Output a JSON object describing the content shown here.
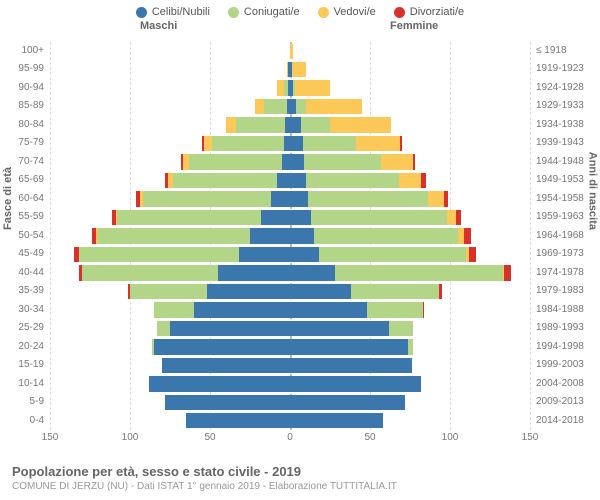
{
  "chart": {
    "type": "population-pyramid",
    "background_color": "#ffffff",
    "grid_color": "#dddddd",
    "center_line_color": "#bbbbbb",
    "text_color": "#666666",
    "label_fontsize": 10,
    "axis_title_fontsize": 11,
    "title": "Popolazione per età, sesso e stato civile - 2019",
    "subtitle": "COMUNE DI JERZU (NU) - Dati ISTAT 1° gennaio 2019 - Elaborazione TUTTITALIA.IT",
    "header_male": "Maschi",
    "header_female": "Femmine",
    "y_title_left": "Fasce di età",
    "y_title_right": "Anni di nascita",
    "xmax": 150,
    "xticks": [
      150,
      100,
      50,
      0,
      50,
      100,
      150
    ],
    "legend": [
      {
        "label": "Celibi/Nubili",
        "color": "#3b77ad"
      },
      {
        "label": "Coniugati/e",
        "color": "#b3d587"
      },
      {
        "label": "Vedovi/e",
        "color": "#fcc858"
      },
      {
        "label": "Divorziati/e",
        "color": "#d9302c"
      }
    ],
    "rows": [
      {
        "age": "100+",
        "birth": "≤ 1918",
        "m": {
          "s": 0,
          "m": 0,
          "w": 0,
          "d": 0
        },
        "f": {
          "s": 0,
          "m": 0,
          "w": 2,
          "d": 0
        }
      },
      {
        "age": "95-99",
        "birth": "1919-1923",
        "m": {
          "s": 1,
          "m": 0,
          "w": 1,
          "d": 0
        },
        "f": {
          "s": 1,
          "m": 0,
          "w": 9,
          "d": 0
        }
      },
      {
        "age": "90-94",
        "birth": "1924-1928",
        "m": {
          "s": 1,
          "m": 3,
          "w": 4,
          "d": 0
        },
        "f": {
          "s": 2,
          "m": 1,
          "w": 22,
          "d": 0
        }
      },
      {
        "age": "85-89",
        "birth": "1929-1933",
        "m": {
          "s": 2,
          "m": 14,
          "w": 6,
          "d": 0
        },
        "f": {
          "s": 4,
          "m": 6,
          "w": 35,
          "d": 0
        }
      },
      {
        "age": "80-84",
        "birth": "1934-1938",
        "m": {
          "s": 3,
          "m": 31,
          "w": 6,
          "d": 0
        },
        "f": {
          "s": 7,
          "m": 18,
          "w": 38,
          "d": 0
        }
      },
      {
        "age": "75-79",
        "birth": "1939-1943",
        "m": {
          "s": 4,
          "m": 45,
          "w": 5,
          "d": 1
        },
        "f": {
          "s": 8,
          "m": 33,
          "w": 28,
          "d": 1
        }
      },
      {
        "age": "70-74",
        "birth": "1944-1948",
        "m": {
          "s": 5,
          "m": 58,
          "w": 4,
          "d": 1
        },
        "f": {
          "s": 9,
          "m": 48,
          "w": 20,
          "d": 1
        }
      },
      {
        "age": "65-69",
        "birth": "1949-1953",
        "m": {
          "s": 8,
          "m": 65,
          "w": 3,
          "d": 2
        },
        "f": {
          "s": 10,
          "m": 58,
          "w": 14,
          "d": 3
        }
      },
      {
        "age": "60-64",
        "birth": "1954-1958",
        "m": {
          "s": 12,
          "m": 80,
          "w": 2,
          "d": 2
        },
        "f": {
          "s": 11,
          "m": 75,
          "w": 10,
          "d": 3
        }
      },
      {
        "age": "55-59",
        "birth": "1959-1963",
        "m": {
          "s": 18,
          "m": 90,
          "w": 1,
          "d": 2
        },
        "f": {
          "s": 13,
          "m": 85,
          "w": 6,
          "d": 3
        }
      },
      {
        "age": "50-54",
        "birth": "1964-1968",
        "m": {
          "s": 25,
          "m": 95,
          "w": 1,
          "d": 3
        },
        "f": {
          "s": 15,
          "m": 90,
          "w": 4,
          "d": 4
        }
      },
      {
        "age": "45-49",
        "birth": "1969-1973",
        "m": {
          "s": 32,
          "m": 100,
          "w": 0,
          "d": 3
        },
        "f": {
          "s": 18,
          "m": 92,
          "w": 2,
          "d": 4
        }
      },
      {
        "age": "40-44",
        "birth": "1974-1978",
        "m": {
          "s": 45,
          "m": 85,
          "w": 0,
          "d": 2
        },
        "f": {
          "s": 28,
          "m": 105,
          "w": 1,
          "d": 4
        }
      },
      {
        "age": "35-39",
        "birth": "1979-1983",
        "m": {
          "s": 52,
          "m": 48,
          "w": 0,
          "d": 1
        },
        "f": {
          "s": 38,
          "m": 55,
          "w": 0,
          "d": 2
        }
      },
      {
        "age": "30-34",
        "birth": "1984-1988",
        "m": {
          "s": 60,
          "m": 25,
          "w": 0,
          "d": 0
        },
        "f": {
          "s": 48,
          "m": 35,
          "w": 0,
          "d": 1
        }
      },
      {
        "age": "25-29",
        "birth": "1989-1993",
        "m": {
          "s": 75,
          "m": 8,
          "w": 0,
          "d": 0
        },
        "f": {
          "s": 62,
          "m": 15,
          "w": 0,
          "d": 0
        }
      },
      {
        "age": "20-24",
        "birth": "1994-1998",
        "m": {
          "s": 85,
          "m": 1,
          "w": 0,
          "d": 0
        },
        "f": {
          "s": 74,
          "m": 3,
          "w": 0,
          "d": 0
        }
      },
      {
        "age": "15-19",
        "birth": "1999-2003",
        "m": {
          "s": 80,
          "m": 0,
          "w": 0,
          "d": 0
        },
        "f": {
          "s": 76,
          "m": 0,
          "w": 0,
          "d": 0
        }
      },
      {
        "age": "10-14",
        "birth": "2004-2008",
        "m": {
          "s": 88,
          "m": 0,
          "w": 0,
          "d": 0
        },
        "f": {
          "s": 82,
          "m": 0,
          "w": 0,
          "d": 0
        }
      },
      {
        "age": "5-9",
        "birth": "2009-2013",
        "m": {
          "s": 78,
          "m": 0,
          "w": 0,
          "d": 0
        },
        "f": {
          "s": 72,
          "m": 0,
          "w": 0,
          "d": 0
        }
      },
      {
        "age": "0-4",
        "birth": "2014-2018",
        "m": {
          "s": 65,
          "m": 0,
          "w": 0,
          "d": 0
        },
        "f": {
          "s": 58,
          "m": 0,
          "w": 0,
          "d": 0
        }
      }
    ]
  }
}
